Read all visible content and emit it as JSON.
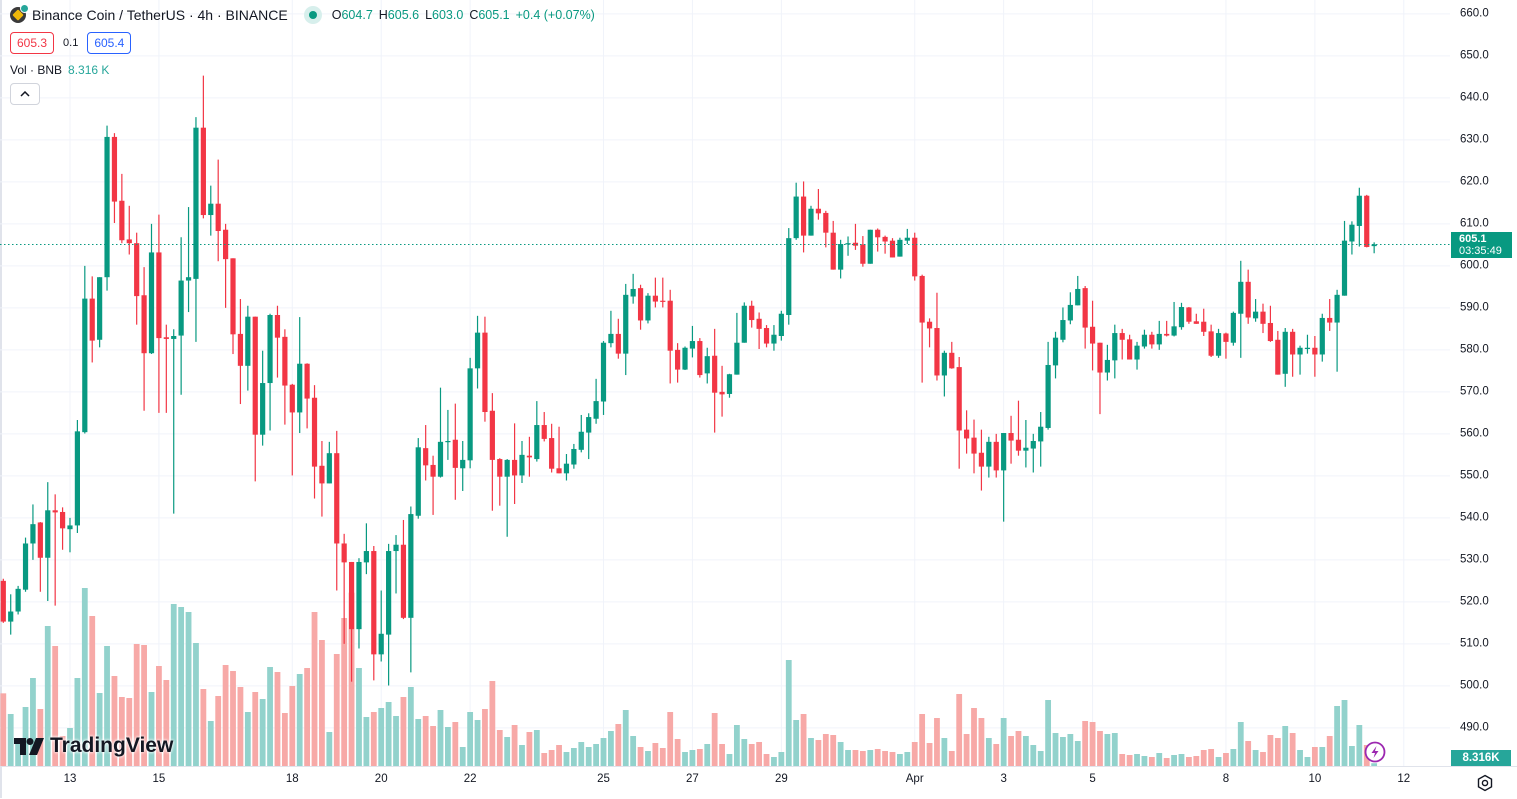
{
  "header": {
    "symbol_title": "Binance Coin / TetherUS · 4h · BINANCE",
    "market_status": "open",
    "ohlc": {
      "o_label": "O",
      "o": "604.7",
      "h_label": "H",
      "h": "605.6",
      "l_label": "L",
      "l": "603.0",
      "c_label": "C",
      "c": "605.1",
      "change": "+0.4 (+0.07%)"
    },
    "sell_price": "605.3",
    "spread": "0.1",
    "buy_price": "605.4",
    "volume_label": "Vol · BNB",
    "volume_value": "8.316 K",
    "collapse_icon": "chevron-up-icon"
  },
  "colors": {
    "up": "#089981",
    "down": "#f23645",
    "vol_up": "#92d2cc",
    "vol_down": "#f7a9a7",
    "grid": "#f0f3fa",
    "sell": "#f23645",
    "buy": "#2962ff"
  },
  "price_badge": {
    "price": "605.1",
    "countdown": "03:35:49"
  },
  "volume_badge": "8.316K",
  "branding": "TradingView",
  "chart_data": {
    "type": "candlestick",
    "interval": "4h",
    "fields": [
      "open",
      "high",
      "low",
      "close",
      "volume_K"
    ],
    "ylim": [
      481,
      663.3
    ],
    "y_ticks": [
      "660.0",
      "650.0",
      "640.0",
      "630.0",
      "620.0",
      "610.0",
      "600.0",
      "590.0",
      "580.0",
      "570.0",
      "560.0",
      "550.0",
      "540.0",
      "530.0",
      "520.0",
      "510.0",
      "500.0",
      "490.0"
    ],
    "x_ticks": [
      {
        "label": "13",
        "candle": 10
      },
      {
        "label": "15",
        "candle": 22
      },
      {
        "label": "18",
        "candle": 40
      },
      {
        "label": "20",
        "candle": 52
      },
      {
        "label": "22",
        "candle": 64
      },
      {
        "label": "25",
        "candle": 82
      },
      {
        "label": "27",
        "candle": 94
      },
      {
        "label": "29",
        "candle": 106
      },
      {
        "label": "Apr",
        "candle": 124
      },
      {
        "label": "3",
        "candle": 136
      },
      {
        "label": "5",
        "candle": 148
      },
      {
        "label": "8",
        "candle": 166
      },
      {
        "label": "10",
        "candle": 178
      },
      {
        "label": "12",
        "candle": 190
      }
    ],
    "last_price": 605.1,
    "grid": true,
    "candles": [
      [
        525.0,
        525.5,
        515.0,
        515.3,
        218
      ],
      [
        515.3,
        521.8,
        512.2,
        517.7,
        156
      ],
      [
        517.7,
        523.8,
        517.0,
        523.1,
        70
      ],
      [
        522.9,
        535.3,
        522.4,
        533.9,
        177
      ],
      [
        533.9,
        543.2,
        530.0,
        538.5,
        264
      ],
      [
        538.9,
        539.0,
        522.4,
        530.5,
        171
      ],
      [
        530.5,
        548.5,
        520.2,
        541.8,
        420
      ],
      [
        541.8,
        545.6,
        519.1,
        541.3,
        360
      ],
      [
        541.4,
        542.5,
        532.4,
        537.5,
        90
      ],
      [
        537.3,
        540.0,
        531.8,
        538.2,
        114
      ],
      [
        538.2,
        563.3,
        536.4,
        560.6,
        264
      ],
      [
        560.4,
        600.0,
        560.1,
        592.2,
        534
      ],
      [
        592.2,
        597.5,
        577.0,
        582.2,
        450
      ],
      [
        582.4,
        597.3,
        580.6,
        597.3,
        219
      ],
      [
        597.3,
        633.4,
        594.1,
        630.7,
        360
      ],
      [
        630.7,
        631.6,
        610.2,
        615.3,
        270
      ],
      [
        615.5,
        621.9,
        605.4,
        606.1,
        207
      ],
      [
        606.3,
        614.3,
        602.7,
        605.4,
        204
      ],
      [
        605.4,
        607.9,
        586.0,
        592.8,
        366
      ],
      [
        593.0,
        599.7,
        565.5,
        579.2,
        363
      ],
      [
        579.2,
        610.0,
        579.0,
        603.2,
        222
      ],
      [
        603.2,
        612.2,
        565.0,
        582.8,
        300
      ],
      [
        583.0,
        586.0,
        565.0,
        582.6,
        258
      ],
      [
        582.6,
        584.9,
        541.0,
        583.3,
        486
      ],
      [
        583.4,
        606.8,
        569.3,
        596.5,
        477
      ],
      [
        596.5,
        614.0,
        589.0,
        597.3,
        462
      ],
      [
        596.9,
        635.4,
        581.9,
        632.9,
        369
      ],
      [
        632.9,
        645.3,
        611.3,
        612.1,
        231
      ],
      [
        612.1,
        619.1,
        607.2,
        614.8,
        135
      ],
      [
        614.8,
        625.3,
        601.1,
        608.3,
        210
      ],
      [
        608.6,
        610.0,
        590.0,
        601.6,
        303
      ],
      [
        601.8,
        601.8,
        579.0,
        583.7,
        285
      ],
      [
        583.8,
        592.1,
        567.1,
        576.2,
        237
      ],
      [
        576.2,
        590.5,
        570.3,
        587.9,
        162
      ],
      [
        587.9,
        587.9,
        548.7,
        559.8,
        222
      ],
      [
        559.8,
        579.8,
        557.2,
        572.1,
        201
      ],
      [
        572.1,
        588.6,
        560.8,
        588.3,
        297
      ],
      [
        588.3,
        590.5,
        573.4,
        582.9,
        282
      ],
      [
        583.1,
        584.9,
        562.2,
        571.5,
        159
      ],
      [
        571.7,
        571.9,
        550.1,
        565.1,
        240
      ],
      [
        565.1,
        587.8,
        560.2,
        576.7,
        276
      ],
      [
        576.7,
        576.8,
        561.3,
        568.4,
        294
      ],
      [
        568.6,
        571.6,
        544.6,
        552.2,
        462
      ],
      [
        552.4,
        558.3,
        540.3,
        548.2,
        378
      ],
      [
        548.2,
        558.1,
        548.2,
        555.4,
        102
      ],
      [
        555.4,
        560.7,
        522.7,
        533.9,
        336
      ],
      [
        533.9,
        536.2,
        510.0,
        529.4,
        444
      ],
      [
        529.5,
        529.5,
        501.0,
        513.5,
        520
      ],
      [
        513.5,
        530.4,
        508.9,
        529.5,
        294
      ],
      [
        529.4,
        538.7,
        526.6,
        532.1,
        147
      ],
      [
        532.1,
        533.3,
        501.3,
        507.5,
        162
      ],
      [
        507.5,
        522.7,
        505.8,
        512.4,
        174
      ],
      [
        512.2,
        533.8,
        500.1,
        532.1,
        192
      ],
      [
        532.1,
        535.9,
        522.0,
        533.6,
        150
      ],
      [
        533.6,
        539.5,
        515.9,
        516.2,
        207
      ],
      [
        516.2,
        542.7,
        503.2,
        540.9,
        237
      ],
      [
        540.5,
        559.0,
        539.8,
        556.8,
        141
      ],
      [
        556.6,
        562.1,
        548.9,
        552.5,
        150
      ],
      [
        552.6,
        554.8,
        540.7,
        549.8,
        120
      ],
      [
        549.8,
        571.0,
        549.6,
        558.1,
        168
      ],
      [
        558.2,
        565.7,
        553.8,
        558.3,
        117
      ],
      [
        558.6,
        567.2,
        544.3,
        551.9,
        132
      ],
      [
        551.8,
        558.3,
        546.4,
        553.8,
        57
      ],
      [
        553.7,
        578.1,
        551.8,
        575.6,
        162
      ],
      [
        575.6,
        588.1,
        570.8,
        584.1,
        138
      ],
      [
        584.1,
        587.9,
        562.9,
        565.2,
        171
      ],
      [
        565.5,
        569.7,
        541.7,
        553.8,
        255
      ],
      [
        554.0,
        554.2,
        542.9,
        549.8,
        108
      ],
      [
        549.8,
        554.0,
        535.5,
        553.8,
        87
      ],
      [
        553.8,
        562.5,
        543.3,
        550.1,
        123
      ],
      [
        550.1,
        558.3,
        548.3,
        555.0,
        63
      ],
      [
        554.8,
        559.3,
        549.8,
        554.4,
        102
      ],
      [
        554.0,
        567.8,
        553.4,
        562.1,
        108
      ],
      [
        562.1,
        565.2,
        558.2,
        558.8,
        39
      ],
      [
        559.0,
        562.4,
        550.8,
        551.7,
        48
      ],
      [
        551.8,
        561.7,
        550.6,
        550.6,
        63
      ],
      [
        550.6,
        555.2,
        548.9,
        552.9,
        42
      ],
      [
        552.7,
        557.6,
        551.7,
        556.4,
        54
      ],
      [
        556.2,
        564.5,
        555.6,
        560.5,
        72
      ],
      [
        560.3,
        564.9,
        554.0,
        564.0,
        57
      ],
      [
        563.6,
        573.1,
        562.4,
        567.8,
        66
      ],
      [
        567.7,
        582.1,
        564.5,
        581.7,
        84
      ],
      [
        581.6,
        589.3,
        580.6,
        583.8,
        105
      ],
      [
        583.8,
        587.4,
        577.9,
        579.1,
        126
      ],
      [
        579.1,
        595.7,
        574.0,
        593.1,
        168
      ],
      [
        592.7,
        598.1,
        591.0,
        594.5,
        90
      ],
      [
        594.7,
        595.5,
        584.8,
        587.0,
        57
      ],
      [
        587.0,
        593.5,
        586.3,
        592.9,
        45
      ],
      [
        592.9,
        597.2,
        590.1,
        591.5,
        69
      ],
      [
        591.7,
        597.2,
        590.1,
        591.5,
        54
      ],
      [
        591.7,
        594.3,
        572.0,
        579.8,
        162
      ],
      [
        580.0,
        581.6,
        572.2,
        575.3,
        81
      ],
      [
        575.3,
        580.8,
        575.2,
        580.5,
        42
      ],
      [
        580.3,
        585.7,
        578.2,
        582.1,
        48
      ],
      [
        582.1,
        582.8,
        573.4,
        574.0,
        51
      ],
      [
        574.4,
        580.5,
        572.0,
        578.5,
        66
      ],
      [
        578.6,
        585.0,
        560.3,
        569.8,
        159
      ],
      [
        570.0,
        576.2,
        564.1,
        569.4,
        66
      ],
      [
        569.5,
        574.3,
        568.6,
        574.2,
        36
      ],
      [
        574.1,
        588.8,
        574.1,
        581.7,
        123
      ],
      [
        581.7,
        591.3,
        581.7,
        590.5,
        81
      ],
      [
        590.5,
        591.7,
        585.3,
        587.1,
        66
      ],
      [
        587.4,
        588.9,
        580.2,
        585.0,
        72
      ],
      [
        585.2,
        585.9,
        580.6,
        581.5,
        36
      ],
      [
        581.5,
        585.9,
        579.8,
        583.6,
        27
      ],
      [
        583.3,
        589.3,
        582.2,
        588.6,
        42
      ],
      [
        588.3,
        609.0,
        586.0,
        606.6,
        318
      ],
      [
        606.6,
        619.8,
        606.2,
        616.5,
        138
      ],
      [
        616.5,
        620.1,
        603.2,
        607.2,
        156
      ],
      [
        607.2,
        614.3,
        607.2,
        613.6,
        84
      ],
      [
        613.6,
        618.3,
        611.0,
        612.5,
        78
      ],
      [
        612.6,
        613.1,
        604.4,
        607.9,
        96
      ],
      [
        607.9,
        610.7,
        599.1,
        599.1,
        93
      ],
      [
        599.1,
        606.2,
        597.0,
        605.2,
        72
      ],
      [
        605.2,
        607.0,
        602.4,
        605.4,
        48
      ],
      [
        605.5,
        610.0,
        603.8,
        604.8,
        48
      ],
      [
        605.1,
        607.1,
        599.8,
        600.5,
        45
      ],
      [
        600.5,
        608.6,
        600.5,
        608.6,
        48
      ],
      [
        608.6,
        608.9,
        603.4,
        606.8,
        51
      ],
      [
        606.9,
        607.2,
        602.9,
        605.8,
        45
      ],
      [
        606.0,
        606.6,
        602.0,
        602.0,
        42
      ],
      [
        602.2,
        606.7,
        602.2,
        606.2,
        36
      ],
      [
        606.0,
        608.8,
        605.2,
        606.7,
        42
      ],
      [
        606.7,
        607.9,
        596.5,
        597.5,
        72
      ],
      [
        597.6,
        597.9,
        572.2,
        586.5,
        156
      ],
      [
        586.7,
        587.5,
        580.6,
        585.1,
        69
      ],
      [
        585.2,
        593.6,
        572.7,
        573.9,
        144
      ],
      [
        573.9,
        579.8,
        568.9,
        579.3,
        84
      ],
      [
        579.3,
        581.9,
        575.5,
        575.6,
        45
      ],
      [
        575.9,
        578.3,
        551.7,
        560.8,
        216
      ],
      [
        561.0,
        565.6,
        555.3,
        558.9,
        96
      ],
      [
        559.1,
        563.4,
        550.6,
        555.3,
        174
      ],
      [
        555.5,
        561.0,
        546.5,
        552.2,
        144
      ],
      [
        552.2,
        559.3,
        549.6,
        558.1,
        84
      ],
      [
        558.1,
        560.0,
        549.6,
        551.3,
        66
      ],
      [
        551.3,
        560.2,
        539.1,
        560.2,
        144
      ],
      [
        560.2,
        564.3,
        552.9,
        558.4,
        90
      ],
      [
        558.6,
        567.9,
        554.8,
        556.0,
        105
      ],
      [
        556.0,
        563.3,
        552.0,
        556.7,
        90
      ],
      [
        556.5,
        560.0,
        550.8,
        558.3,
        63
      ],
      [
        558.2,
        565.2,
        552.2,
        561.7,
        45
      ],
      [
        561.4,
        581.9,
        561.0,
        576.4,
        198
      ],
      [
        576.3,
        584.3,
        573.2,
        582.9,
        99
      ],
      [
        582.4,
        590.1,
        581.8,
        587.1,
        87
      ],
      [
        587.0,
        593.7,
        586.1,
        590.7,
        96
      ],
      [
        590.6,
        597.6,
        590.6,
        594.5,
        75
      ],
      [
        594.7,
        595.2,
        580.3,
        585.3,
        135
      ],
      [
        585.5,
        591.7,
        575.1,
        581.5,
        132
      ],
      [
        581.7,
        581.7,
        564.7,
        574.6,
        105
      ],
      [
        574.6,
        581.2,
        572.7,
        577.6,
        96
      ],
      [
        577.5,
        586.0,
        573.2,
        584.0,
        99
      ],
      [
        584.0,
        585.0,
        577.7,
        582.4,
        36
      ],
      [
        582.5,
        583.6,
        577.7,
        577.7,
        33
      ],
      [
        577.7,
        581.9,
        575.3,
        581.0,
        36
      ],
      [
        580.8,
        584.8,
        580.3,
        583.6,
        30
      ],
      [
        583.6,
        584.3,
        580.3,
        581.3,
        27
      ],
      [
        581.3,
        586.9,
        580.0,
        583.8,
        39
      ],
      [
        583.8,
        586.9,
        583.2,
        583.4,
        24
      ],
      [
        583.4,
        591.4,
        583.2,
        585.6,
        33
      ],
      [
        585.4,
        591.2,
        584.8,
        590.2,
        36
      ],
      [
        590.1,
        590.2,
        586.2,
        586.7,
        27
      ],
      [
        586.8,
        588.6,
        586.2,
        586.2,
        30
      ],
      [
        586.7,
        589.8,
        583.3,
        584.3,
        48
      ],
      [
        584.4,
        586.0,
        578.3,
        578.6,
        51
      ],
      [
        578.6,
        585.0,
        578.1,
        584.0,
        27
      ],
      [
        583.9,
        584.1,
        577.9,
        581.9,
        39
      ],
      [
        581.7,
        589.1,
        581.0,
        588.8,
        51
      ],
      [
        588.6,
        601.2,
        578.1,
        596.2,
        132
      ],
      [
        596.2,
        599.1,
        586.2,
        587.7,
        75
      ],
      [
        587.5,
        592.1,
        586.7,
        589.1,
        48
      ],
      [
        589.1,
        591.0,
        584.0,
        586.2,
        42
      ],
      [
        586.4,
        590.5,
        581.9,
        582.1,
        93
      ],
      [
        582.4,
        584.5,
        574.1,
        574.1,
        84
      ],
      [
        574.3,
        585.2,
        571.2,
        584.3,
        120
      ],
      [
        584.3,
        585.0,
        573.6,
        578.9,
        99
      ],
      [
        578.9,
        581.0,
        574.1,
        580.5,
        48
      ],
      [
        580.2,
        583.6,
        579.1,
        580.5,
        27
      ],
      [
        580.5,
        583.3,
        573.6,
        578.9,
        57
      ],
      [
        578.9,
        588.6,
        577.2,
        587.6,
        57
      ],
      [
        587.6,
        592.1,
        584.5,
        586.5,
        90
      ],
      [
        586.5,
        594.3,
        574.8,
        593.1,
        180
      ],
      [
        592.9,
        610.7,
        592.9,
        606.0,
        198
      ],
      [
        605.8,
        610.6,
        602.7,
        609.8,
        60
      ],
      [
        609.5,
        618.6,
        604.6,
        616.7,
        123
      ],
      [
        616.7,
        616.9,
        604.4,
        604.5,
        63
      ],
      [
        604.7,
        605.6,
        603.0,
        605.1,
        8.316
      ]
    ]
  }
}
